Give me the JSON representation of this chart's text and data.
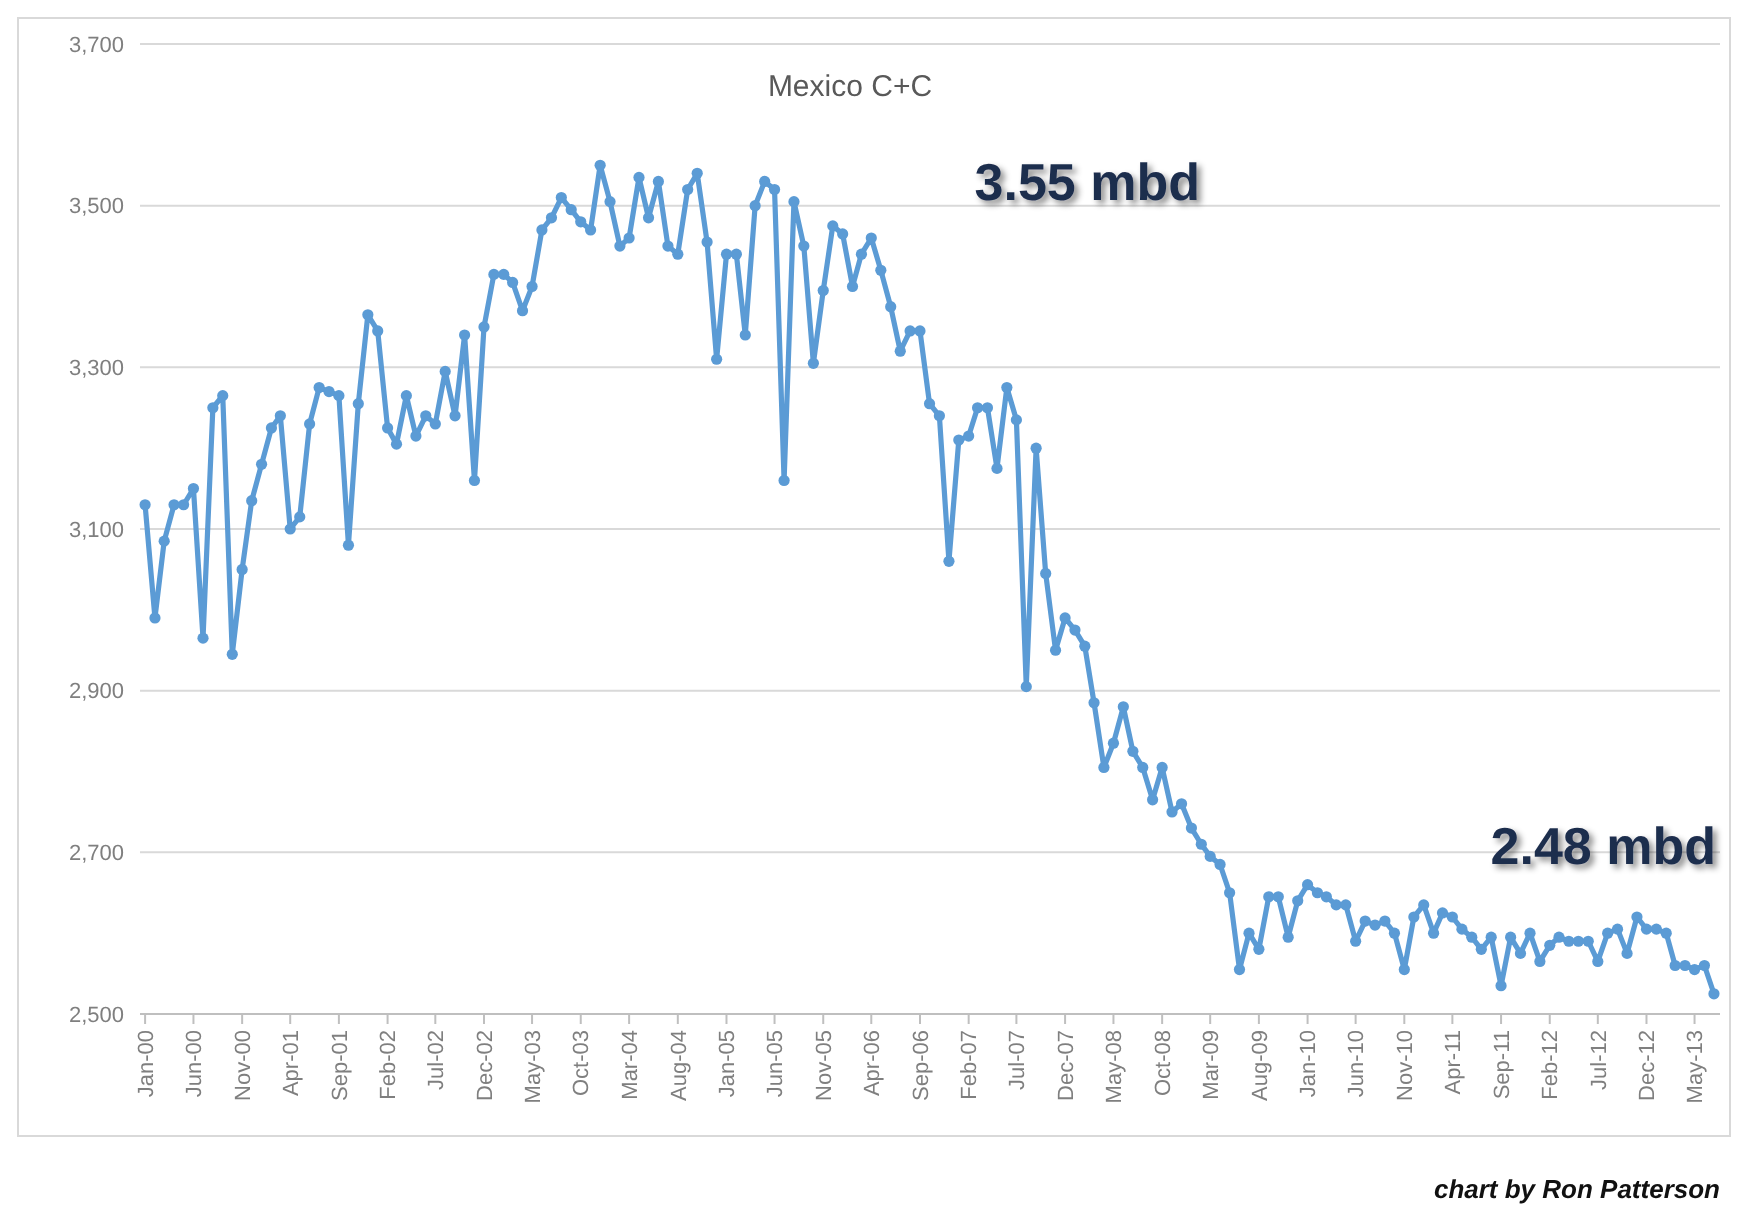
{
  "chart_data": {
    "type": "line",
    "title": "Mexico C+C",
    "x": [
      "2000-01",
      "2000-02",
      "2000-03",
      "2000-04",
      "2000-05",
      "2000-06",
      "2000-07",
      "2000-08",
      "2000-09",
      "2000-10",
      "2000-11",
      "2000-12",
      "2001-01",
      "2001-02",
      "2001-03",
      "2001-04",
      "2001-05",
      "2001-06",
      "2001-07",
      "2001-08",
      "2001-09",
      "2001-10",
      "2001-11",
      "2001-12",
      "2002-01",
      "2002-02",
      "2002-03",
      "2002-04",
      "2002-05",
      "2002-06",
      "2002-07",
      "2002-08",
      "2002-09",
      "2002-10",
      "2002-11",
      "2002-12",
      "2003-01",
      "2003-02",
      "2003-03",
      "2003-04",
      "2003-05",
      "2003-06",
      "2003-07",
      "2003-08",
      "2003-09",
      "2003-10",
      "2003-11",
      "2003-12",
      "2004-01",
      "2004-02",
      "2004-03",
      "2004-04",
      "2004-05",
      "2004-06",
      "2004-07",
      "2004-08",
      "2004-09",
      "2004-10",
      "2004-11",
      "2004-12",
      "2005-01",
      "2005-02",
      "2005-03",
      "2005-04",
      "2005-05",
      "2005-06",
      "2005-07",
      "2005-08",
      "2005-09",
      "2005-10",
      "2005-11",
      "2005-12",
      "2006-01",
      "2006-02",
      "2006-03",
      "2006-04",
      "2006-05",
      "2006-06",
      "2006-07",
      "2006-08",
      "2006-09",
      "2006-10",
      "2006-11",
      "2006-12",
      "2007-01",
      "2007-02",
      "2007-03",
      "2007-04",
      "2007-05",
      "2007-06",
      "2007-07",
      "2007-08",
      "2007-09",
      "2007-10",
      "2007-11",
      "2007-12",
      "2008-01",
      "2008-02",
      "2008-03",
      "2008-04",
      "2008-05",
      "2008-06",
      "2008-07",
      "2008-08",
      "2008-09",
      "2008-10",
      "2008-11",
      "2008-12",
      "2009-01",
      "2009-02",
      "2009-03",
      "2009-04",
      "2009-05",
      "2009-06",
      "2009-07",
      "2009-08",
      "2009-09",
      "2009-10",
      "2009-11",
      "2009-12",
      "2010-01",
      "2010-02",
      "2010-03",
      "2010-04",
      "2010-05",
      "2010-06",
      "2010-07",
      "2010-08",
      "2010-09",
      "2010-10",
      "2010-11",
      "2010-12",
      "2011-01",
      "2011-02",
      "2011-03",
      "2011-04",
      "2011-05",
      "2011-06",
      "2011-07",
      "2011-08",
      "2011-09",
      "2011-10",
      "2011-11",
      "2011-12",
      "2012-01",
      "2012-02",
      "2012-03",
      "2012-04",
      "2012-05",
      "2012-06",
      "2012-07",
      "2012-08",
      "2012-09",
      "2012-10",
      "2012-11",
      "2012-12",
      "2013-01",
      "2013-02",
      "2013-03",
      "2013-04",
      "2013-05",
      "2013-06",
      "2013-07"
    ],
    "series": [
      {
        "color": "#5b9bd5",
        "values": [
          3130,
          2990,
          3085,
          3130,
          3130,
          3150,
          2965,
          3250,
          3265,
          2945,
          3050,
          3135,
          3180,
          3225,
          3240,
          3100,
          3115,
          3230,
          3275,
          3270,
          3265,
          3080,
          3255,
          3365,
          3345,
          3225,
          3205,
          3265,
          3215,
          3240,
          3230,
          3295,
          3240,
          3340,
          3160,
          3350,
          3415,
          3415,
          3405,
          3370,
          3400,
          3470,
          3485,
          3510,
          3495,
          3480,
          3470,
          3550,
          3505,
          3450,
          3460,
          3535,
          3485,
          3530,
          3450,
          3440,
          3520,
          3540,
          3455,
          3310,
          3440,
          3440,
          3340,
          3500,
          3530,
          3520,
          3160,
          3505,
          3450,
          3305,
          3395,
          3475,
          3465,
          3400,
          3440,
          3460,
          3420,
          3375,
          3320,
          3345,
          3345,
          3255,
          3240,
          3060,
          3210,
          3215,
          3250,
          3250,
          3175,
          3275,
          3235,
          2905,
          3200,
          3045,
          2950,
          2990,
          2975,
          2955,
          2885,
          2805,
          2835,
          2880,
          2825,
          2805,
          2765,
          2805,
          2750,
          2760,
          2730,
          2710,
          2695,
          2685,
          2650,
          2555,
          2600,
          2580,
          2645,
          2645,
          2595,
          2640,
          2660,
          2650,
          2645,
          2635,
          2635,
          2590,
          2615,
          2610,
          2615,
          2600,
          2555,
          2620,
          2635,
          2600,
          2625,
          2620,
          2605,
          2595,
          2580,
          2595,
          2535,
          2595,
          2575,
          2600,
          2565,
          2585,
          2595,
          2590,
          2590,
          2590,
          2565,
          2600,
          2605,
          2575,
          2620,
          2605,
          2605,
          2600,
          2560,
          2560,
          2555,
          2560,
          2525
        ]
      }
    ],
    "xlim": [
      "1999-12-16",
      "2013-07-20"
    ],
    "xticks": [
      {
        "value": "2000-01",
        "label": "Jan-00"
      },
      {
        "value": "2000-06",
        "label": "Jun-00"
      },
      {
        "value": "2000-11",
        "label": "Nov-00"
      },
      {
        "value": "2001-04",
        "label": "Apr-01"
      },
      {
        "value": "2001-09",
        "label": "Sep-01"
      },
      {
        "value": "2002-02",
        "label": "Feb-02"
      },
      {
        "value": "2002-07",
        "label": "Jul-02"
      },
      {
        "value": "2002-12",
        "label": "Dec-02"
      },
      {
        "value": "2003-05",
        "label": "May-03"
      },
      {
        "value": "2003-10",
        "label": "Oct-03"
      },
      {
        "value": "2004-03",
        "label": "Mar-04"
      },
      {
        "value": "2004-08",
        "label": "Aug-04"
      },
      {
        "value": "2005-01",
        "label": "Jan-05"
      },
      {
        "value": "2005-06",
        "label": "Jun-05"
      },
      {
        "value": "2005-11",
        "label": "Nov-05"
      },
      {
        "value": "2006-04",
        "label": "Apr-06"
      },
      {
        "value": "2006-09",
        "label": "Sep-06"
      },
      {
        "value": "2007-02",
        "label": "Feb-07"
      },
      {
        "value": "2007-07",
        "label": "Jul-07"
      },
      {
        "value": "2007-12",
        "label": "Dec-07"
      },
      {
        "value": "2008-05",
        "label": "May-08"
      },
      {
        "value": "2008-10",
        "label": "Oct-08"
      },
      {
        "value": "2009-03",
        "label": "Mar-09"
      },
      {
        "value": "2009-08",
        "label": "Aug-09"
      },
      {
        "value": "2010-01",
        "label": "Jan-10"
      },
      {
        "value": "2010-06",
        "label": "Jun-10"
      },
      {
        "value": "2010-11",
        "label": "Nov-10"
      },
      {
        "value": "2011-04",
        "label": "Apr-11"
      },
      {
        "value": "2011-09",
        "label": "Sep-11"
      },
      {
        "value": "2012-02",
        "label": "Feb-12"
      },
      {
        "value": "2012-07",
        "label": "Jul-12"
      },
      {
        "value": "2012-12",
        "label": "Dec-12"
      },
      {
        "value": "2013-05",
        "label": "May-13"
      }
    ],
    "ylim": [
      2500,
      3700
    ],
    "yticks": [
      {
        "value": 2500,
        "label": "2,500"
      },
      {
        "value": 2700,
        "label": "2,700"
      },
      {
        "value": 2900,
        "label": "2,900"
      },
      {
        "value": 3100,
        "label": "3,100"
      },
      {
        "value": 3300,
        "label": "3,300"
      },
      {
        "value": 3500,
        "label": "3,500"
      },
      {
        "value": 3700,
        "label": "3,700"
      }
    ],
    "grid": "y",
    "marker": "circle",
    "line_style": "solid",
    "annotations": [
      "3.55 mbd",
      "2.48 mbd",
      "chart by Ron Patterson"
    ]
  }
}
